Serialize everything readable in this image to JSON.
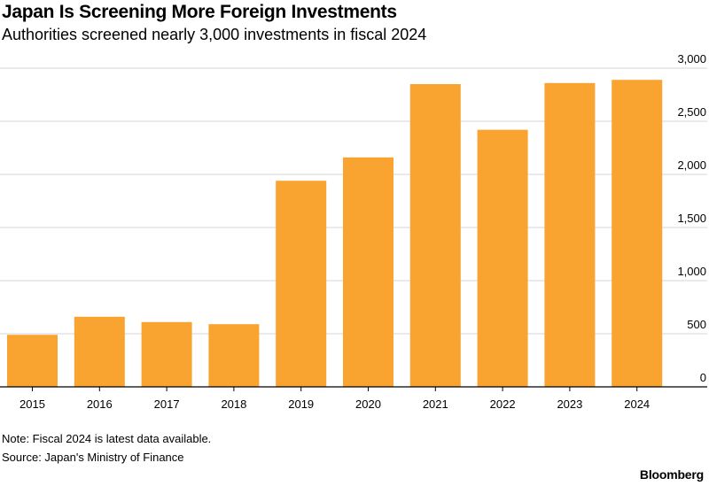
{
  "header": {
    "title": "Japan Is Screening More Foreign Investments",
    "subtitle": "Authorities screened nearly 3,000 investments in fiscal 2024"
  },
  "footer": {
    "note": "Note: Fiscal 2024 is latest data available.",
    "source": "Source: Japan's Ministry of Finance",
    "brand": "Bloomberg"
  },
  "colors": {
    "bar": "#f9a331",
    "grid": "#d6d6d6",
    "axis": "#000000"
  },
  "chart_data": {
    "type": "bar",
    "categories": [
      "2015",
      "2016",
      "2017",
      "2018",
      "2019",
      "2020",
      "2021",
      "2022",
      "2023",
      "2024"
    ],
    "values": [
      490,
      660,
      610,
      590,
      1940,
      2160,
      2850,
      2420,
      2860,
      2890
    ],
    "ylim": [
      0,
      3000
    ],
    "yticks": [
      0,
      500,
      1000,
      1500,
      2000,
      2500,
      3000
    ],
    "ytick_labels": [
      "0",
      "500",
      "1,000",
      "1,500",
      "2,000",
      "2,500",
      "3,000"
    ],
    "grid": true,
    "y_axis_side": "right"
  }
}
